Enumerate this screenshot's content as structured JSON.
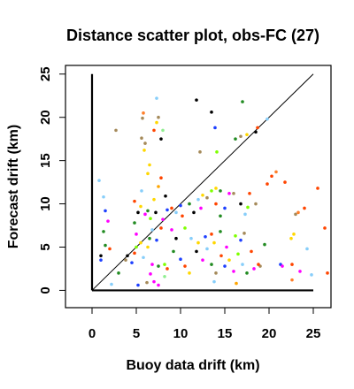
{
  "chart_data": {
    "type": "scatter",
    "title": "Distance scatter plot, obs-FC (27)",
    "xlabel": "Buoy data drift (km)",
    "ylabel": "Forecast drift (km)",
    "xlim": [
      -3,
      27
    ],
    "ylim": [
      -2,
      26
    ],
    "xticks": [
      "0",
      "5",
      "10",
      "15",
      "20",
      "25"
    ],
    "yticks": [
      "0",
      "5",
      "10",
      "15",
      "20",
      "25"
    ],
    "xtick_values": [
      0,
      5,
      10,
      15,
      20,
      25
    ],
    "ytick_values": [
      0,
      5,
      10,
      15,
      20,
      25
    ],
    "grid": false,
    "reference_axes": {
      "x_from": 0,
      "x_to": 25,
      "y_from": 0,
      "y_to": 25
    },
    "diagonal": {
      "from": [
        0,
        0
      ],
      "to": [
        25,
        25
      ]
    },
    "points": [
      {
        "x": 2.7,
        "y": 18.5,
        "color": "#a58a5a"
      },
      {
        "x": 5.7,
        "y": 19.9,
        "color": "#a58a5a"
      },
      {
        "x": 5.8,
        "y": 20.5,
        "color": "#ff7f2a"
      },
      {
        "x": 5.6,
        "y": 17.6,
        "color": "#a58a5a"
      },
      {
        "x": 6.0,
        "y": 17.0,
        "color": "#a58a5a"
      },
      {
        "x": 5.9,
        "y": 16.2,
        "color": "#ffd700"
      },
      {
        "x": 7.3,
        "y": 22.2,
        "color": "#87cefa"
      },
      {
        "x": 7.5,
        "y": 20.0,
        "color": "#a58a5a"
      },
      {
        "x": 7.3,
        "y": 19.4,
        "color": "#ffd700"
      },
      {
        "x": 7.0,
        "y": 18.5,
        "color": "#ff4500"
      },
      {
        "x": 7.8,
        "y": 17.5,
        "color": "#000000"
      },
      {
        "x": 8.0,
        "y": 18.5,
        "color": "#90ee90"
      },
      {
        "x": 6.5,
        "y": 14.5,
        "color": "#ffd700"
      },
      {
        "x": 6.3,
        "y": 13.5,
        "color": "#ffd700"
      },
      {
        "x": 7.5,
        "y": 12.0,
        "color": "#ffa500"
      },
      {
        "x": 7.8,
        "y": 13.0,
        "color": "#ff4500"
      },
      {
        "x": 11.8,
        "y": 22.0,
        "color": "#000000"
      },
      {
        "x": 13.5,
        "y": 20.6,
        "color": "#000000"
      },
      {
        "x": 13.9,
        "y": 18.8,
        "color": "#1e40ff"
      },
      {
        "x": 12.2,
        "y": 16.0,
        "color": "#a58a5a"
      },
      {
        "x": 14.1,
        "y": 16.0,
        "color": "#7fff00"
      },
      {
        "x": 16.2,
        "y": 17.5,
        "color": "#228b22"
      },
      {
        "x": 16.8,
        "y": 17.8,
        "color": "#a58a5a"
      },
      {
        "x": 17.0,
        "y": 21.8,
        "color": "#228b22"
      },
      {
        "x": 17.5,
        "y": 18.0,
        "color": "#ffd700"
      },
      {
        "x": 18.5,
        "y": 18.3,
        "color": "#000000"
      },
      {
        "x": 18.7,
        "y": 18.8,
        "color": "#ff4500"
      },
      {
        "x": 19.8,
        "y": 19.8,
        "color": "#87cefa"
      },
      {
        "x": 0.8,
        "y": 12.7,
        "color": "#87cefa"
      },
      {
        "x": 1.3,
        "y": 10.8,
        "color": "#87cefa"
      },
      {
        "x": 1.5,
        "y": 9.2,
        "color": "#1e40ff"
      },
      {
        "x": 1.8,
        "y": 8.0,
        "color": "#ff00ff"
      },
      {
        "x": 1.3,
        "y": 6.8,
        "color": "#228b22"
      },
      {
        "x": 1.0,
        "y": 4.0,
        "color": "#000000"
      },
      {
        "x": 1.0,
        "y": 3.5,
        "color": "#1e40ff"
      },
      {
        "x": 2.0,
        "y": 4.8,
        "color": "#ff4500"
      },
      {
        "x": 1.5,
        "y": 5.2,
        "color": "#228b22"
      },
      {
        "x": 2.2,
        "y": 0.7,
        "color": "#87cefa"
      },
      {
        "x": 3.0,
        "y": 2.0,
        "color": "#228b22"
      },
      {
        "x": 3.8,
        "y": 3.5,
        "color": "#a58a5a"
      },
      {
        "x": 4.0,
        "y": 4.0,
        "color": "#000000"
      },
      {
        "x": 4.5,
        "y": 3.2,
        "color": "#1e40ff"
      },
      {
        "x": 4.8,
        "y": 4.3,
        "color": "#ff4500"
      },
      {
        "x": 5.0,
        "y": 5.0,
        "color": "#7fff00"
      },
      {
        "x": 5.5,
        "y": 5.5,
        "color": "#ffd700"
      },
      {
        "x": 5.0,
        "y": 6.5,
        "color": "#ff00ff"
      },
      {
        "x": 4.8,
        "y": 7.8,
        "color": "#228b22"
      },
      {
        "x": 5.2,
        "y": 9.0,
        "color": "#000000"
      },
      {
        "x": 4.8,
        "y": 10.3,
        "color": "#ff4500"
      },
      {
        "x": 5.6,
        "y": 11.5,
        "color": "#87cefa"
      },
      {
        "x": 5.5,
        "y": 9.7,
        "color": "#ffd700"
      },
      {
        "x": 6.0,
        "y": 8.8,
        "color": "#ff00ff"
      },
      {
        "x": 6.3,
        "y": 9.2,
        "color": "#228b22"
      },
      {
        "x": 6.6,
        "y": 8.3,
        "color": "#7fff00"
      },
      {
        "x": 7.2,
        "y": 9.0,
        "color": "#000000"
      },
      {
        "x": 7.0,
        "y": 10.5,
        "color": "#ffd700"
      },
      {
        "x": 8.3,
        "y": 10.9,
        "color": "#000000"
      },
      {
        "x": 8.5,
        "y": 9.3,
        "color": "#1e40ff"
      },
      {
        "x": 8.0,
        "y": 8.2,
        "color": "#ff00ff"
      },
      {
        "x": 6.8,
        "y": 7.0,
        "color": "#87cefa"
      },
      {
        "x": 6.5,
        "y": 6.0,
        "color": "#228b22"
      },
      {
        "x": 7.3,
        "y": 5.8,
        "color": "#1e40ff"
      },
      {
        "x": 7.8,
        "y": 7.2,
        "color": "#ff4500"
      },
      {
        "x": 6.3,
        "y": 5.0,
        "color": "#ffd700"
      },
      {
        "x": 5.8,
        "y": 3.8,
        "color": "#87cefa"
      },
      {
        "x": 6.8,
        "y": 3.0,
        "color": "#ff00ff"
      },
      {
        "x": 7.5,
        "y": 2.8,
        "color": "#228b22"
      },
      {
        "x": 8.2,
        "y": 3.0,
        "color": "#7fff00"
      },
      {
        "x": 8.5,
        "y": 2.5,
        "color": "#ff4500"
      },
      {
        "x": 5.2,
        "y": 0.6,
        "color": "#1e40ff"
      },
      {
        "x": 6.2,
        "y": 0.9,
        "color": "#a58a5a"
      },
      {
        "x": 6.6,
        "y": 1.9,
        "color": "#ff00ff"
      },
      {
        "x": 7.0,
        "y": 1.0,
        "color": "#ff00ff"
      },
      {
        "x": 7.5,
        "y": 0.6,
        "color": "#ff00ff"
      },
      {
        "x": 8.2,
        "y": 1.6,
        "color": "#90ee90"
      },
      {
        "x": 9.0,
        "y": 9.5,
        "color": "#ff4500"
      },
      {
        "x": 9.5,
        "y": 9.0,
        "color": "#87cefa"
      },
      {
        "x": 10.0,
        "y": 9.8,
        "color": "#1e40ff"
      },
      {
        "x": 10.2,
        "y": 8.6,
        "color": "#ff4500"
      },
      {
        "x": 11.0,
        "y": 10.0,
        "color": "#228b22"
      },
      {
        "x": 11.5,
        "y": 9.0,
        "color": "#000000"
      },
      {
        "x": 12.0,
        "y": 10.5,
        "color": "#87cefa"
      },
      {
        "x": 12.5,
        "y": 11.0,
        "color": "#ffd700"
      },
      {
        "x": 12.3,
        "y": 9.5,
        "color": "#ff00ff"
      },
      {
        "x": 13.0,
        "y": 10.7,
        "color": "#a58a5a"
      },
      {
        "x": 13.5,
        "y": 11.5,
        "color": "#7fff00"
      },
      {
        "x": 14.0,
        "y": 11.8,
        "color": "#ffd700"
      },
      {
        "x": 14.5,
        "y": 11.5,
        "color": "#228b22"
      },
      {
        "x": 14.0,
        "y": 10.0,
        "color": "#ff4500"
      },
      {
        "x": 14.5,
        "y": 8.6,
        "color": "#228b22"
      },
      {
        "x": 15.0,
        "y": 9.5,
        "color": "#1e40ff"
      },
      {
        "x": 15.5,
        "y": 11.2,
        "color": "#ff00ff"
      },
      {
        "x": 16.0,
        "y": 11.2,
        "color": "#a58a5a"
      },
      {
        "x": 16.8,
        "y": 10.0,
        "color": "#000000"
      },
      {
        "x": 17.3,
        "y": 8.8,
        "color": "#87cefa"
      },
      {
        "x": 17.6,
        "y": 9.6,
        "color": "#7fff00"
      },
      {
        "x": 17.8,
        "y": 11.2,
        "color": "#ff4500"
      },
      {
        "x": 18.5,
        "y": 10.0,
        "color": "#a58a5a"
      },
      {
        "x": 9.0,
        "y": 7.0,
        "color": "#ff00ff"
      },
      {
        "x": 9.5,
        "y": 6.0,
        "color": "#000000"
      },
      {
        "x": 10.5,
        "y": 7.2,
        "color": "#7fff00"
      },
      {
        "x": 11.2,
        "y": 6.0,
        "color": "#87cefa"
      },
      {
        "x": 12.0,
        "y": 5.5,
        "color": "#ffd700"
      },
      {
        "x": 12.8,
        "y": 6.2,
        "color": "#1e40ff"
      },
      {
        "x": 13.5,
        "y": 6.5,
        "color": "#ff4500"
      },
      {
        "x": 13.8,
        "y": 5.5,
        "color": "#ffd700"
      },
      {
        "x": 14.5,
        "y": 6.8,
        "color": "#228b22"
      },
      {
        "x": 15.2,
        "y": 5.0,
        "color": "#ff00ff"
      },
      {
        "x": 16.2,
        "y": 6.3,
        "color": "#7fff00"
      },
      {
        "x": 16.8,
        "y": 5.8,
        "color": "#1e40ff"
      },
      {
        "x": 17.2,
        "y": 6.6,
        "color": "#a58a5a"
      },
      {
        "x": 9.2,
        "y": 4.5,
        "color": "#228b22"
      },
      {
        "x": 10.0,
        "y": 3.6,
        "color": "#1e40ff"
      },
      {
        "x": 10.5,
        "y": 2.8,
        "color": "#ff4500"
      },
      {
        "x": 11.0,
        "y": 2.0,
        "color": "#ffd700"
      },
      {
        "x": 11.8,
        "y": 4.5,
        "color": "#000000"
      },
      {
        "x": 12.5,
        "y": 3.5,
        "color": "#ff00ff"
      },
      {
        "x": 13.0,
        "y": 4.8,
        "color": "#87cefa"
      },
      {
        "x": 13.5,
        "y": 3.0,
        "color": "#228b22"
      },
      {
        "x": 14.0,
        "y": 2.0,
        "color": "#a58a5a"
      },
      {
        "x": 14.6,
        "y": 4.0,
        "color": "#ff4500"
      },
      {
        "x": 15.0,
        "y": 2.8,
        "color": "#1e40ff"
      },
      {
        "x": 15.5,
        "y": 3.5,
        "color": "#ffd700"
      },
      {
        "x": 16.0,
        "y": 2.2,
        "color": "#ff00ff"
      },
      {
        "x": 16.5,
        "y": 4.2,
        "color": "#7fff00"
      },
      {
        "x": 17.0,
        "y": 3.0,
        "color": "#87cefa"
      },
      {
        "x": 13.8,
        "y": 1.0,
        "color": "#87cefa"
      },
      {
        "x": 16.3,
        "y": 0.8,
        "color": "#ffa500"
      },
      {
        "x": 17.5,
        "y": 2.0,
        "color": "#228b22"
      },
      {
        "x": 18.0,
        "y": 4.5,
        "color": "#ff4500"
      },
      {
        "x": 18.3,
        "y": 2.5,
        "color": "#ff00ff"
      },
      {
        "x": 19.0,
        "y": 2.8,
        "color": "#a58a5a"
      },
      {
        "x": 18.8,
        "y": 3.0,
        "color": "#ff4500"
      },
      {
        "x": 19.5,
        "y": 5.3,
        "color": "#228b22"
      },
      {
        "x": 19.8,
        "y": 12.3,
        "color": "#ff4500"
      },
      {
        "x": 20.3,
        "y": 13.2,
        "color": "#ff4500"
      },
      {
        "x": 20.8,
        "y": 13.7,
        "color": "#ff7f2a"
      },
      {
        "x": 21.3,
        "y": 3.0,
        "color": "#1e40ff"
      },
      {
        "x": 21.5,
        "y": 2.8,
        "color": "#ff00ff"
      },
      {
        "x": 21.8,
        "y": 12.5,
        "color": "#ff4500"
      },
      {
        "x": 22.5,
        "y": 6.0,
        "color": "#ffd700"
      },
      {
        "x": 22.8,
        "y": 6.5,
        "color": "#ffd700"
      },
      {
        "x": 22.6,
        "y": 3.0,
        "color": "#ff4500"
      },
      {
        "x": 23.0,
        "y": 8.8,
        "color": "#a58a5a"
      },
      {
        "x": 23.3,
        "y": 9.0,
        "color": "#ff7f2a"
      },
      {
        "x": 23.5,
        "y": 2.2,
        "color": "#ff00ff"
      },
      {
        "x": 22.6,
        "y": 1.2,
        "color": "#ff7f2a"
      },
      {
        "x": 24.0,
        "y": 9.5,
        "color": "#ff4500"
      },
      {
        "x": 24.3,
        "y": 4.8,
        "color": "#87cefa"
      },
      {
        "x": 24.8,
        "y": 1.8,
        "color": "#87cefa"
      },
      {
        "x": 25.5,
        "y": 11.8,
        "color": "#ff4500"
      },
      {
        "x": 26.3,
        "y": 7.2,
        "color": "#ff4500"
      },
      {
        "x": 26.6,
        "y": 2.0,
        "color": "#ff4500"
      }
    ]
  }
}
